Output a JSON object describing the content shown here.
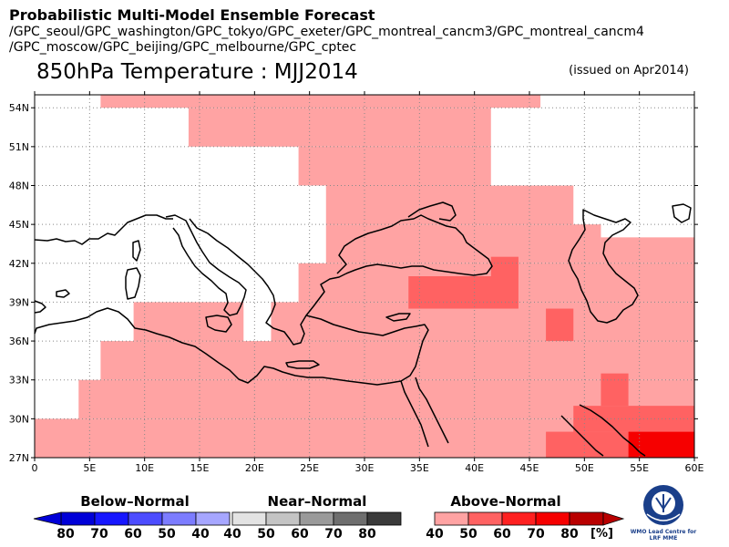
{
  "header": {
    "title": "Probabilistic Multi-Model Ensemble Forecast",
    "models_line1": "/GPC_seoul/GPC_washington/GPC_tokyo/GPC_exeter/GPC_montreal_cancm3/GPC_montreal_cancm4",
    "models_line2": "/GPC_moscow/GPC_beijing/GPC_melbourne/GPC_cptec"
  },
  "map": {
    "title": "850hPa Temperature : MJJ2014",
    "issued": "(issued on Apr2014)",
    "lon_range": [
      0,
      60
    ],
    "lat_range": [
      27,
      55
    ],
    "lat_ticks": [
      "54N",
      "51N",
      "48N",
      "45N",
      "42N",
      "39N",
      "36N",
      "33N",
      "30N",
      "27N"
    ],
    "lon_ticks": [
      "0",
      "5E",
      "10E",
      "15E",
      "20E",
      "25E",
      "30E",
      "35E",
      "40E",
      "45E",
      "50E",
      "55E",
      "60E"
    ],
    "grid": true,
    "colors": {
      "above_40": "#ffa3a3",
      "above_50": "#ff6262",
      "above_60": "#fe2020",
      "above_70": "#f60000",
      "above_80": "#b90000"
    },
    "probability_cells": [
      {
        "lat": [
          54,
          55.5
        ],
        "lon": [
          6,
          46
        ],
        "category": "above",
        "prob": 40
      },
      {
        "lat": [
          51,
          54
        ],
        "lon": [
          14,
          41.5
        ],
        "category": "above",
        "prob": 40
      },
      {
        "lat": [
          48,
          51
        ],
        "lon": [
          24,
          41.5
        ],
        "category": "above",
        "prob": 40
      },
      {
        "lat": [
          45,
          48
        ],
        "lon": [
          26.5,
          49
        ],
        "category": "above",
        "prob": 40
      },
      {
        "lat": [
          42,
          45
        ],
        "lon": [
          26.5,
          51.5
        ],
        "category": "above",
        "prob": 40
      },
      {
        "lat": [
          42,
          44
        ],
        "lon": [
          51.5,
          60
        ],
        "category": "above",
        "prob": 40
      },
      {
        "lat": [
          39,
          42
        ],
        "lon": [
          24,
          60
        ],
        "category": "above",
        "prob": 40
      },
      {
        "lat": [
          36,
          39
        ],
        "lon": [
          9,
          19
        ],
        "category": "above",
        "prob": 40
      },
      {
        "lat": [
          36,
          39
        ],
        "lon": [
          21.5,
          60
        ],
        "category": "above",
        "prob": 40
      },
      {
        "lat": [
          33,
          36
        ],
        "lon": [
          6,
          60
        ],
        "category": "above",
        "prob": 40
      },
      {
        "lat": [
          30,
          33
        ],
        "lon": [
          4,
          60
        ],
        "category": "above",
        "prob": 40
      },
      {
        "lat": [
          27,
          30
        ],
        "lon": [
          0,
          60
        ],
        "category": "above",
        "prob": 40
      },
      {
        "lat": [
          38.5,
          41
        ],
        "lon": [
          34,
          44
        ],
        "category": "above",
        "prob": 50
      },
      {
        "lat": [
          41,
          42.5
        ],
        "lon": [
          41.5,
          44
        ],
        "category": "above",
        "prob": 50
      },
      {
        "lat": [
          36,
          38.5
        ],
        "lon": [
          46.5,
          49
        ],
        "category": "above",
        "prob": 50
      },
      {
        "lat": [
          31,
          33.5
        ],
        "lon": [
          51.5,
          54
        ],
        "category": "above",
        "prob": 50
      },
      {
        "lat": [
          29,
          31
        ],
        "lon": [
          49,
          60
        ],
        "category": "above",
        "prob": 50
      },
      {
        "lat": [
          27,
          29
        ],
        "lon": [
          46.5,
          54
        ],
        "category": "above",
        "prob": 50
      },
      {
        "lat": [
          27,
          29
        ],
        "lon": [
          54,
          60
        ],
        "category": "above",
        "prob": 70
      }
    ]
  },
  "legend": {
    "below": {
      "title": "Below–Normal",
      "labels": [
        "80",
        "70",
        "60",
        "50",
        "40"
      ],
      "colors": [
        "#0000d8",
        "#1616ff",
        "#4c4cff",
        "#7c7cff",
        "#a6a6ff"
      ]
    },
    "near": {
      "title": "Near–Normal",
      "labels": [
        "40",
        "50",
        "60",
        "70",
        "80"
      ],
      "colors": [
        "#e3e3e3",
        "#c4c4c4",
        "#9a9a9a",
        "#6e6e6e",
        "#3a3a3a"
      ]
    },
    "above": {
      "title": "Above–Normal",
      "labels": [
        "40",
        "50",
        "60",
        "70",
        "80"
      ],
      "colors": [
        "#ffa3a3",
        "#ff6262",
        "#fe2020",
        "#f60000",
        "#b90000"
      ],
      "unit": "[%]"
    }
  },
  "logo": {
    "text_line1": "WMO Lead Centre for",
    "text_line2": "LRF MME",
    "icon": "wmo-emblem-icon"
  }
}
